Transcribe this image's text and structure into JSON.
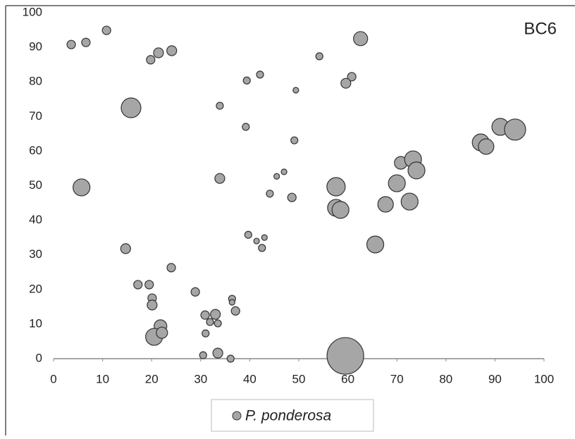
{
  "chart_data": {
    "type": "bubble",
    "annotation": "BC6",
    "xlim": [
      0,
      100
    ],
    "ylim": [
      0,
      100
    ],
    "xticks": [
      0,
      10,
      20,
      30,
      40,
      50,
      60,
      70,
      80,
      90,
      100
    ],
    "yticks": [
      0,
      10,
      20,
      30,
      40,
      50,
      60,
      70,
      80,
      90,
      100
    ],
    "legend": "bottom",
    "series": [
      {
        "name": "P. ponderosa",
        "color": "#a6a6a6",
        "x": [
          3.6,
          6.6,
          10.8,
          19.8,
          21.4,
          24.1,
          15.8,
          5.7,
          14.7,
          24,
          17.2,
          19.5,
          20.1,
          20.1,
          21.8,
          20.5,
          22.1,
          28.9,
          30.9,
          33,
          31.9,
          33.5,
          31,
          36.4,
          36.4,
          37.1,
          30.5,
          33.5,
          36.1,
          33.9,
          33.9,
          39.4,
          42.1,
          39.2,
          39.7,
          41.4,
          43,
          42.5,
          44.1,
          45.5,
          47,
          48.6,
          49.4,
          49.1,
          54.2,
          62.6,
          60.8,
          59.6,
          57.6,
          57.6,
          58.5,
          59.5,
          65.6,
          67.7,
          70,
          70.8,
          73.3,
          74,
          72.6,
          87.1,
          88.2,
          91.1,
          94.1
        ],
        "values": [
          90.8,
          91.4,
          94.9,
          86.4,
          88.4,
          89,
          72.5,
          49.5,
          31.8,
          26.3,
          21.4,
          21.4,
          17.5,
          15.5,
          9.4,
          6.3,
          7.5,
          19.3,
          12.6,
          12.8,
          10.6,
          10.2,
          7.3,
          17.3,
          16.3,
          13.8,
          1,
          1.6,
          0,
          73.1,
          52.1,
          80.4,
          82.1,
          67,
          35.8,
          34,
          35,
          32,
          47.7,
          52.7,
          54,
          46.6,
          77.6,
          63.1,
          87.4,
          92.5,
          81.5,
          79.6,
          49.7,
          43.6,
          43,
          0.8,
          33,
          44.6,
          50.7,
          56.6,
          57.6,
          54.4,
          45.4,
          62.5,
          61.3,
          67,
          66.2
        ],
        "sizes": [
          6,
          6,
          6,
          6,
          7,
          7,
          14,
          12,
          7,
          6,
          6,
          6,
          6,
          7,
          9,
          12,
          8,
          6,
          6,
          7,
          5,
          5,
          5,
          5,
          4,
          6,
          5,
          7,
          5,
          5,
          7,
          5,
          5,
          5,
          5,
          4,
          4,
          5,
          5,
          4,
          4,
          6,
          4,
          5,
          5,
          10,
          6,
          7,
          13,
          12,
          12,
          26,
          12,
          11,
          12,
          9,
          12,
          12,
          12,
          12,
          11,
          12,
          15
        ]
      }
    ]
  }
}
